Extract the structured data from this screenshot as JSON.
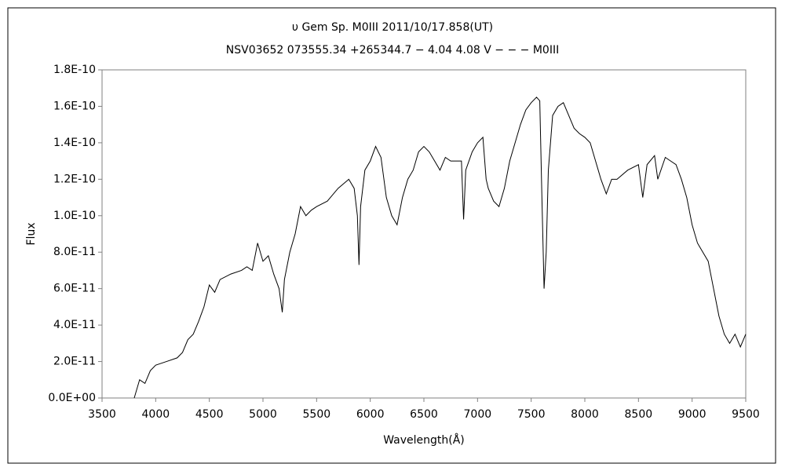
{
  "chart_data": {
    "type": "line",
    "title": "υ Gem     Sp. M0III   2011/10/17.858(UT)",
    "subtitle": "NSV03652 073555.34 +265344.7 − 4.04 4.08 V − − − M0III",
    "x_label": "Wavelength(Å)",
    "y_label": "Flux",
    "xlim": [
      3500,
      9500
    ],
    "xticks": [
      3500,
      4000,
      4500,
      5000,
      5500,
      6000,
      6500,
      7000,
      7500,
      8000,
      8500,
      9000,
      9500
    ],
    "ylim": [
      0,
      1.8e-10
    ],
    "yticks": [
      {
        "value": 0,
        "label": "0.0E+00"
      },
      {
        "value": 2e-11,
        "label": "2.0E-11"
      },
      {
        "value": 4e-11,
        "label": "4.0E-11"
      },
      {
        "value": 6e-11,
        "label": "6.0E-11"
      },
      {
        "value": 8e-11,
        "label": "8.0E-11"
      },
      {
        "value": 1e-10,
        "label": "1.0E-10"
      },
      {
        "value": 1.2e-10,
        "label": "1.2E-10"
      },
      {
        "value": 1.4e-10,
        "label": "1.4E-10"
      },
      {
        "value": 1.6e-10,
        "label": "1.6E-10"
      },
      {
        "value": 1.8e-10,
        "label": "1.8E-10"
      }
    ],
    "grid": false,
    "series": [
      {
        "color": "#000000",
        "x": [
          3800,
          3850,
          3900,
          3950,
          4000,
          4100,
          4200,
          4250,
          4300,
          4350,
          4400,
          4450,
          4500,
          4550,
          4600,
          4700,
          4800,
          4850,
          4900,
          4950,
          5000,
          5050,
          5100,
          5150,
          5180,
          5200,
          5250,
          5300,
          5350,
          5400,
          5450,
          5500,
          5600,
          5700,
          5800,
          5850,
          5880,
          5895,
          5910,
          5950,
          6000,
          6050,
          6100,
          6150,
          6200,
          6250,
          6300,
          6350,
          6400,
          6450,
          6500,
          6550,
          6600,
          6650,
          6700,
          6750,
          6800,
          6850,
          6870,
          6890,
          6950,
          7000,
          7050,
          7080,
          7100,
          7150,
          7200,
          7250,
          7300,
          7350,
          7400,
          7450,
          7500,
          7550,
          7580,
          7600,
          7620,
          7640,
          7660,
          7700,
          7750,
          7800,
          7850,
          7900,
          7950,
          8000,
          8050,
          8100,
          8150,
          8200,
          8250,
          8300,
          8400,
          8500,
          8540,
          8580,
          8650,
          8680,
          8750,
          8800,
          8850,
          8900,
          8950,
          9000,
          9050,
          9100,
          9150,
          9200,
          9250,
          9300,
          9350,
          9400,
          9450,
          9500
        ],
        "values": [
          0,
          1e-11,
          8e-12,
          1.5e-11,
          1.8e-11,
          2e-11,
          2.2e-11,
          2.5e-11,
          3.2e-11,
          3.5e-11,
          4.2e-11,
          5e-11,
          6.2e-11,
          5.8e-11,
          6.5e-11,
          6.8e-11,
          7e-11,
          7.2e-11,
          7e-11,
          8.5e-11,
          7.5e-11,
          7.8e-11,
          6.8e-11,
          6e-11,
          4.7e-11,
          6.5e-11,
          8e-11,
          9e-11,
          1.05e-10,
          1e-10,
          1.03e-10,
          1.05e-10,
          1.08e-10,
          1.15e-10,
          1.2e-10,
          1.15e-10,
          1e-10,
          7.3e-11,
          1.05e-10,
          1.25e-10,
          1.3e-10,
          1.38e-10,
          1.32e-10,
          1.1e-10,
          1e-10,
          9.5e-11,
          1.1e-10,
          1.2e-10,
          1.25e-10,
          1.35e-10,
          1.38e-10,
          1.35e-10,
          1.3e-10,
          1.25e-10,
          1.32e-10,
          1.3e-10,
          1.3e-10,
          1.3e-10,
          9.8e-11,
          1.25e-10,
          1.35e-10,
          1.4e-10,
          1.43e-10,
          1.2e-10,
          1.15e-10,
          1.08e-10,
          1.05e-10,
          1.15e-10,
          1.3e-10,
          1.4e-10,
          1.5e-10,
          1.58e-10,
          1.62e-10,
          1.65e-10,
          1.63e-10,
          1.1e-10,
          6e-11,
          8e-11,
          1.25e-10,
          1.55e-10,
          1.6e-10,
          1.62e-10,
          1.55e-10,
          1.48e-10,
          1.45e-10,
          1.43e-10,
          1.4e-10,
          1.3e-10,
          1.2e-10,
          1.12e-10,
          1.2e-10,
          1.2e-10,
          1.25e-10,
          1.28e-10,
          1.1e-10,
          1.28e-10,
          1.33e-10,
          1.2e-10,
          1.32e-10,
          1.3e-10,
          1.28e-10,
          1.2e-10,
          1.1e-10,
          9.5e-11,
          8.5e-11,
          8e-11,
          7.5e-11,
          6e-11,
          4.5e-11,
          3.5e-11,
          3e-11,
          3.5e-11,
          2.8e-11,
          3.5e-11
        ]
      }
    ]
  }
}
